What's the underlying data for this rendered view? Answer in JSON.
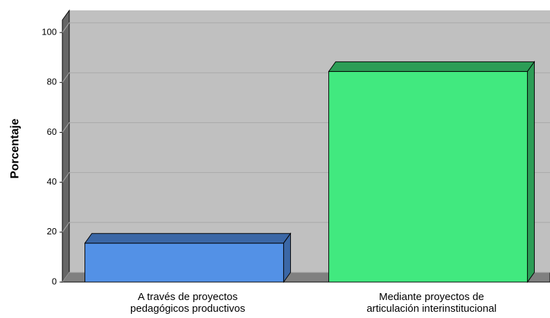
{
  "chart_data": {
    "type": "bar3d",
    "y_label": "Porcentaje",
    "categories": [
      [
        "A través de proyectos",
        "pedagógicos productivos"
      ],
      [
        "Mediante proyectos de",
        "articulación interinstitucional"
      ]
    ],
    "values": [
      15.6,
      84.4
    ],
    "colors": [
      "#5391e6",
      "#41e97f"
    ],
    "top_colors": [
      "#3b67a6",
      "#2c9d56"
    ],
    "ylim": [
      0,
      105
    ],
    "yticks": [
      0,
      20,
      40,
      60,
      80,
      100
    ],
    "grid": true
  }
}
